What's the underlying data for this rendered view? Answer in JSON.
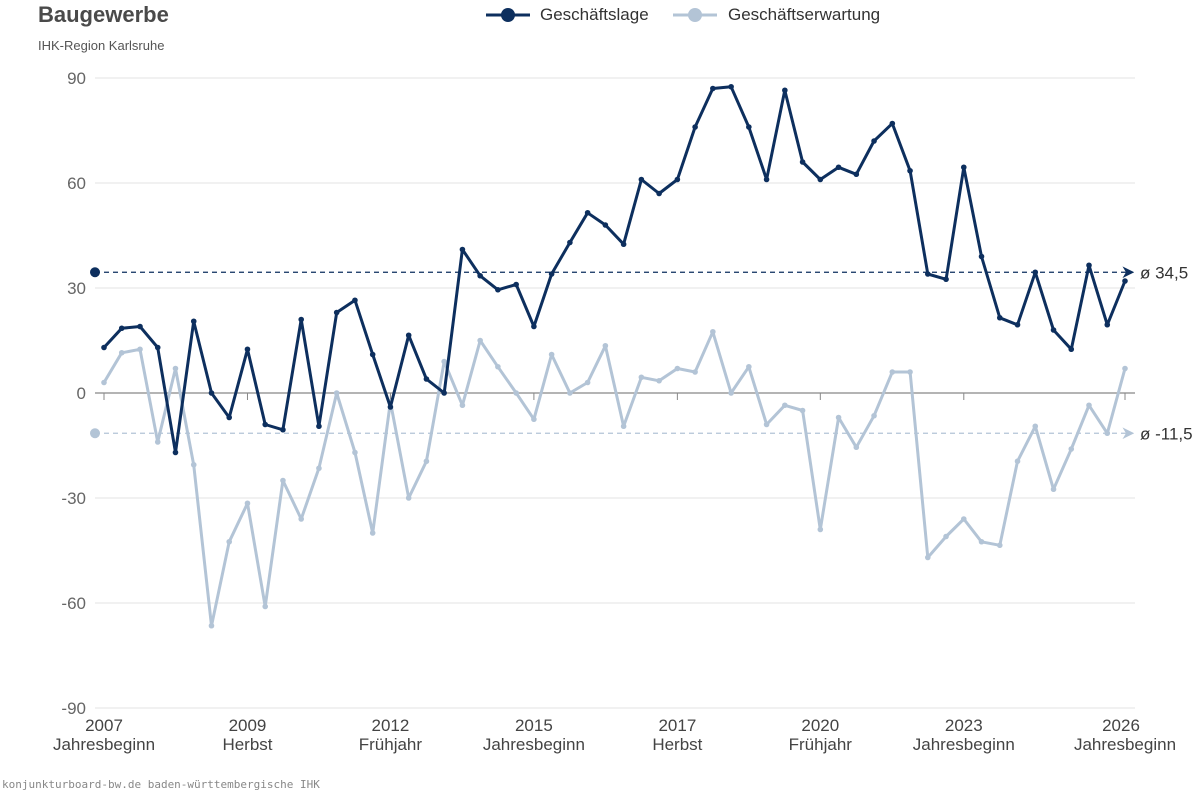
{
  "header": {
    "title": "Baugewerbe",
    "subtitle": "IHK-Region Karlsruhe"
  },
  "footer": {
    "text": "konjunkturboard-bw.de baden-württembergische IHK"
  },
  "colors": {
    "geschaeftslage": "#0d2f5e",
    "geschaeftserwartung": "#b3c4d6",
    "grid": "#e3e3e3",
    "zero_line": "#888888"
  },
  "chart_data": {
    "type": "line",
    "title": "Baugewerbe",
    "subtitle": "IHK-Region Karlsruhe",
    "xlabel": "",
    "ylabel": "",
    "ylim": [
      -90,
      90
    ],
    "yticks": [
      90,
      60,
      30,
      0,
      -30,
      -60,
      -90
    ],
    "ytick_labels": [
      "90",
      "60",
      "30",
      "0",
      "-30",
      "-60",
      "-90"
    ],
    "x_range": [
      2007.0,
      2026.0
    ],
    "x_ticks": [
      {
        "x": 2007.0,
        "year": "2007",
        "season": "Jahresbeginn"
      },
      {
        "x": 2009.67,
        "year": "2009",
        "season": "Herbst"
      },
      {
        "x": 2012.33,
        "year": "2012",
        "season": "Frühjahr"
      },
      {
        "x": 2015.0,
        "year": "2015",
        "season": "Jahresbeginn"
      },
      {
        "x": 2017.67,
        "year": "2017",
        "season": "Herbst"
      },
      {
        "x": 2020.33,
        "year": "2020",
        "season": "Frühjahr"
      },
      {
        "x": 2023.0,
        "year": "2023",
        "season": "Jahresbeginn"
      },
      {
        "x": 2026.0,
        "year": "2026",
        "season": "Jahresbeginn"
      }
    ],
    "grid": true,
    "legend_position": "top-center",
    "series": [
      {
        "name": "Geschäftslage",
        "color": "#0d2f5e",
        "average": 34.5,
        "average_label": "ø 34,5",
        "x": [
          2007.0,
          2007.33,
          2007.67,
          2008.0,
          2008.33,
          2008.67,
          2009.0,
          2009.33,
          2009.67,
          2010.0,
          2010.33,
          2010.67,
          2011.0,
          2011.33,
          2011.67,
          2012.0,
          2012.33,
          2012.67,
          2013.0,
          2013.33,
          2013.67,
          2014.0,
          2014.33,
          2014.67,
          2015.0,
          2015.33,
          2015.67,
          2016.0,
          2016.33,
          2016.67,
          2017.0,
          2017.33,
          2017.67,
          2018.0,
          2018.33,
          2018.67,
          2019.0,
          2019.33,
          2019.67,
          2020.0,
          2020.33,
          2020.67,
          2021.0,
          2021.33,
          2021.67,
          2022.0,
          2022.33,
          2022.67,
          2023.0,
          2023.33,
          2023.67,
          2024.0,
          2024.33,
          2024.67,
          2025.0,
          2025.33,
          2025.67,
          2026.0
        ],
        "values": [
          13,
          18.5,
          19,
          13,
          -17,
          20.5,
          0,
          -7,
          12.5,
          -9,
          -10.5,
          21,
          -9.5,
          23,
          26.5,
          11,
          -4,
          16.5,
          4,
          0,
          41,
          33.5,
          29.5,
          31,
          19,
          34,
          43,
          51.5,
          48,
          42.5,
          61,
          57,
          61,
          76,
          87,
          87.5,
          76,
          61,
          86.5,
          66,
          61,
          64.5,
          62.5,
          72,
          77,
          63.5,
          34,
          32.5,
          64.5,
          39,
          21.5,
          19.5,
          34.5,
          18,
          12.5,
          36.5,
          19.5,
          32
        ]
      },
      {
        "name": "Geschäftserwartung",
        "color": "#b3c4d6",
        "average": -11.5,
        "average_label": "ø -11,5",
        "x": [
          2007.0,
          2007.33,
          2007.67,
          2008.0,
          2008.33,
          2008.67,
          2009.0,
          2009.33,
          2009.67,
          2010.0,
          2010.33,
          2010.67,
          2011.0,
          2011.33,
          2011.67,
          2012.0,
          2012.33,
          2012.67,
          2013.0,
          2013.33,
          2013.67,
          2014.0,
          2014.33,
          2014.67,
          2015.0,
          2015.33,
          2015.67,
          2016.0,
          2016.33,
          2016.67,
          2017.0,
          2017.33,
          2017.67,
          2018.0,
          2018.33,
          2018.67,
          2019.0,
          2019.33,
          2019.67,
          2020.0,
          2020.33,
          2020.67,
          2021.0,
          2021.33,
          2021.67,
          2022.0,
          2022.33,
          2022.67,
          2023.0,
          2023.33,
          2023.67,
          2024.0,
          2024.33,
          2024.67,
          2025.0,
          2025.33,
          2025.67,
          2026.0
        ],
        "values": [
          3,
          11.5,
          12.5,
          -14,
          7,
          -20.5,
          -66.5,
          -42.5,
          -31.5,
          -61,
          -25,
          -36,
          -21.5,
          0,
          -17,
          -40,
          -2.5,
          -30,
          -19.5,
          9,
          -3.5,
          15,
          7.5,
          0,
          -7.5,
          11,
          0,
          3,
          13.5,
          -9.5,
          4.5,
          3.5,
          7,
          6,
          17.5,
          0,
          7.5,
          -9,
          -3.5,
          -5,
          -39,
          -7,
          -15.5,
          -6.5,
          6,
          6,
          -47,
          -41,
          -36,
          -42.5,
          -43.5,
          -19.5,
          -9.5,
          -27.5,
          -16,
          -3.5,
          -11.5,
          7
        ]
      }
    ]
  }
}
